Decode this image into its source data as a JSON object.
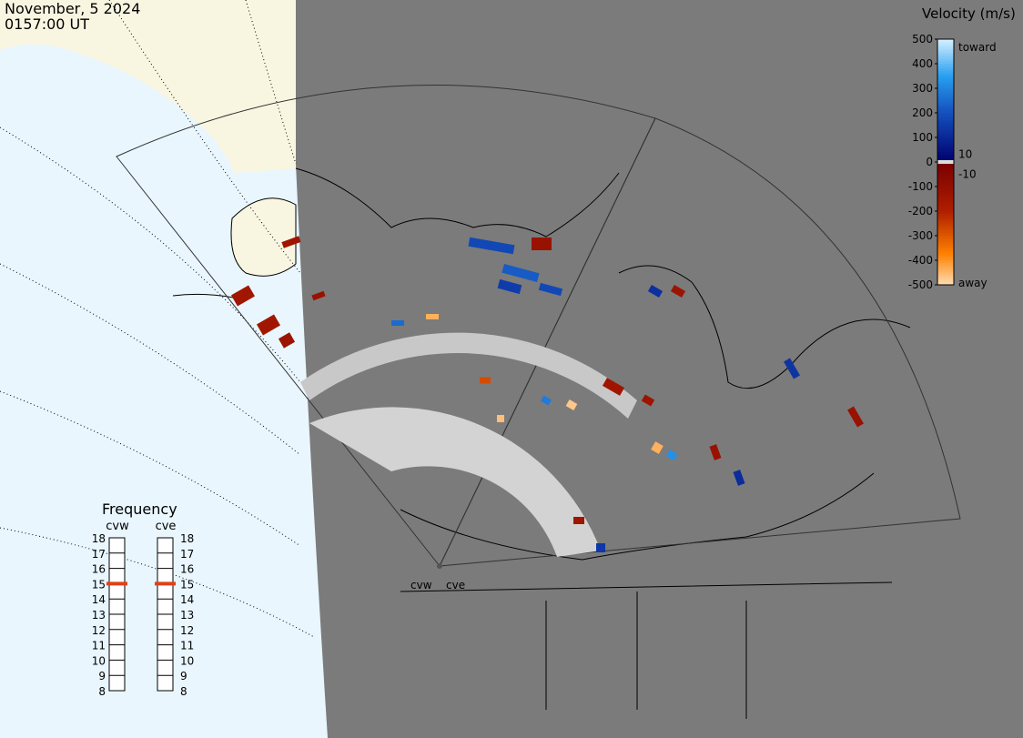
{
  "header": {
    "date": "November, 5 2024",
    "time": "0157:00 UT"
  },
  "velocity_scale": {
    "title": "Velocity (m/s)",
    "lim": [
      -500,
      500
    ],
    "ticks": [
      500,
      400,
      300,
      200,
      100,
      0,
      -100,
      -200,
      -300,
      -400,
      -500
    ],
    "inner_ticks": [
      10,
      -10
    ],
    "toward": "toward",
    "away": "away"
  },
  "frequency": {
    "title": "Frequency",
    "lim": [
      8,
      18
    ],
    "ticks": [
      18,
      17,
      16,
      15,
      14,
      13,
      12,
      11,
      10,
      9,
      8
    ],
    "radars": [
      {
        "name": "cvw",
        "value": 15
      },
      {
        "name": "cve",
        "value": 15
      }
    ]
  },
  "radar_sites": [
    "cvw",
    "cve"
  ],
  "cells": [
    180,
    -120,
    220,
    150,
    180,
    -140,
    -150,
    -150,
    -130,
    -120,
    250,
    -440,
    -280,
    -460,
    280,
    -470,
    -140,
    -130,
    120,
    -130,
    130,
    -120,
    -140,
    140,
    -440,
    320,
    -120,
    110
  ]
}
